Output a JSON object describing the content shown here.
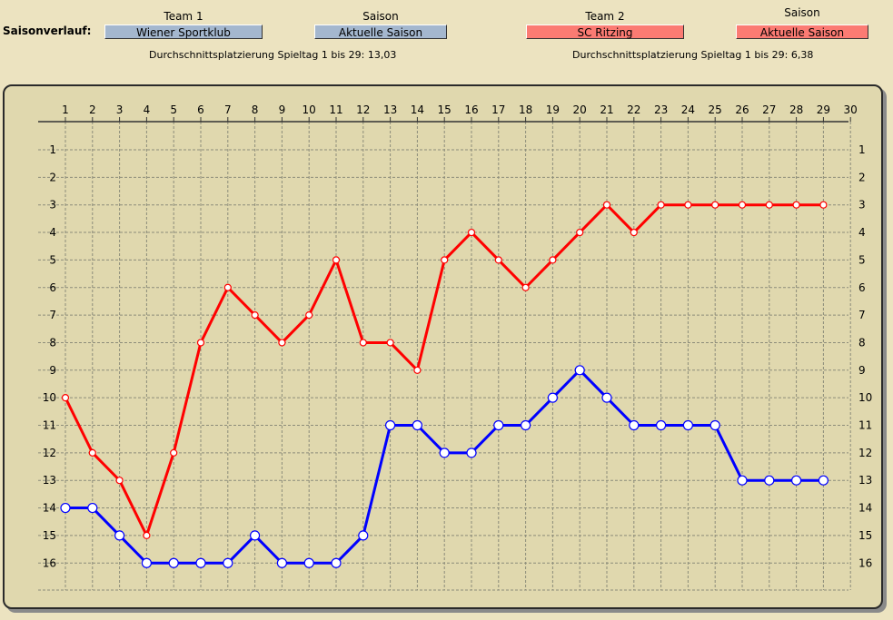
{
  "header": {
    "title": "Saisonverlauf:",
    "team1_label": "Team 1",
    "team1_value": "Wiener Sportklub",
    "season1_label": "Saison",
    "season1_value": "Aktuelle Saison",
    "team2_label": "Team 2",
    "team2_value": "SC Ritzing",
    "season2_label": "Saison",
    "season2_value": "Aktuelle Saison",
    "avg1": "Durchschnittsplatzierung Spieltag 1 bis 29: 13,03",
    "avg2": "Durchschnittsplatzierung Spieltag 1 bis 29:  6,38"
  },
  "colors": {
    "team1": "#0000ff",
    "team2": "#ff0000",
    "team1_button": "#a4b7ce",
    "team2_button": "#fb7b73"
  },
  "chart_data": {
    "type": "line",
    "x": [
      1,
      2,
      3,
      4,
      5,
      6,
      7,
      8,
      9,
      10,
      11,
      12,
      13,
      14,
      15,
      16,
      17,
      18,
      19,
      20,
      21,
      22,
      23,
      24,
      25,
      26,
      27,
      28,
      29
    ],
    "xlim": [
      1,
      30
    ],
    "ylim": [
      1,
      16
    ],
    "y_inverted": true,
    "x_ticks": [
      1,
      2,
      3,
      4,
      5,
      6,
      7,
      8,
      9,
      10,
      11,
      12,
      13,
      14,
      15,
      16,
      17,
      18,
      19,
      20,
      21,
      22,
      23,
      24,
      25,
      26,
      27,
      28,
      29,
      30
    ],
    "y_ticks": [
      1,
      2,
      3,
      4,
      5,
      6,
      7,
      8,
      9,
      10,
      11,
      12,
      13,
      14,
      15,
      16
    ],
    "grid": true,
    "series": [
      {
        "name": "Wiener Sportklub",
        "color": "#0000ff",
        "values": [
          14,
          14,
          15,
          16,
          16,
          16,
          16,
          15,
          16,
          16,
          16,
          15,
          11,
          11,
          12,
          12,
          11,
          11,
          10,
          9,
          10,
          11,
          11,
          11,
          11,
          13,
          13,
          13,
          13
        ]
      },
      {
        "name": "SC Ritzing",
        "color": "#ff0000",
        "values": [
          10,
          12,
          13,
          15,
          12,
          8,
          6,
          7,
          8,
          7,
          5,
          8,
          8,
          9,
          5,
          4,
          5,
          6,
          5,
          4,
          3,
          4,
          3,
          3,
          3,
          3,
          3,
          3,
          3
        ]
      }
    ]
  }
}
